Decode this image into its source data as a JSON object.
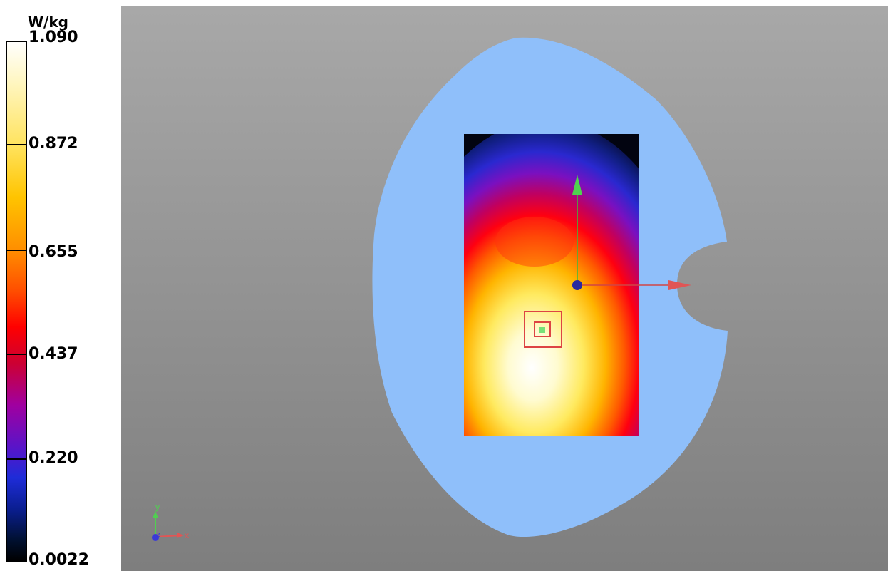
{
  "legend": {
    "unit": "W/kg",
    "ticks": [
      "1.090",
      "0.872",
      "0.655",
      "0.437",
      "0.220",
      "0.0022"
    ]
  },
  "axes_triad": {
    "x": "x",
    "y": "y",
    "z": "z"
  },
  "colors": {
    "background_top": "#a8a8a8",
    "background_bottom": "#7e7e7e",
    "phantom": "#8fbffa",
    "x_axis": "#e05555",
    "y_axis": "#4fd14f",
    "z_axis": "#3a3ad8",
    "peak_marker": "#dd4444"
  }
}
